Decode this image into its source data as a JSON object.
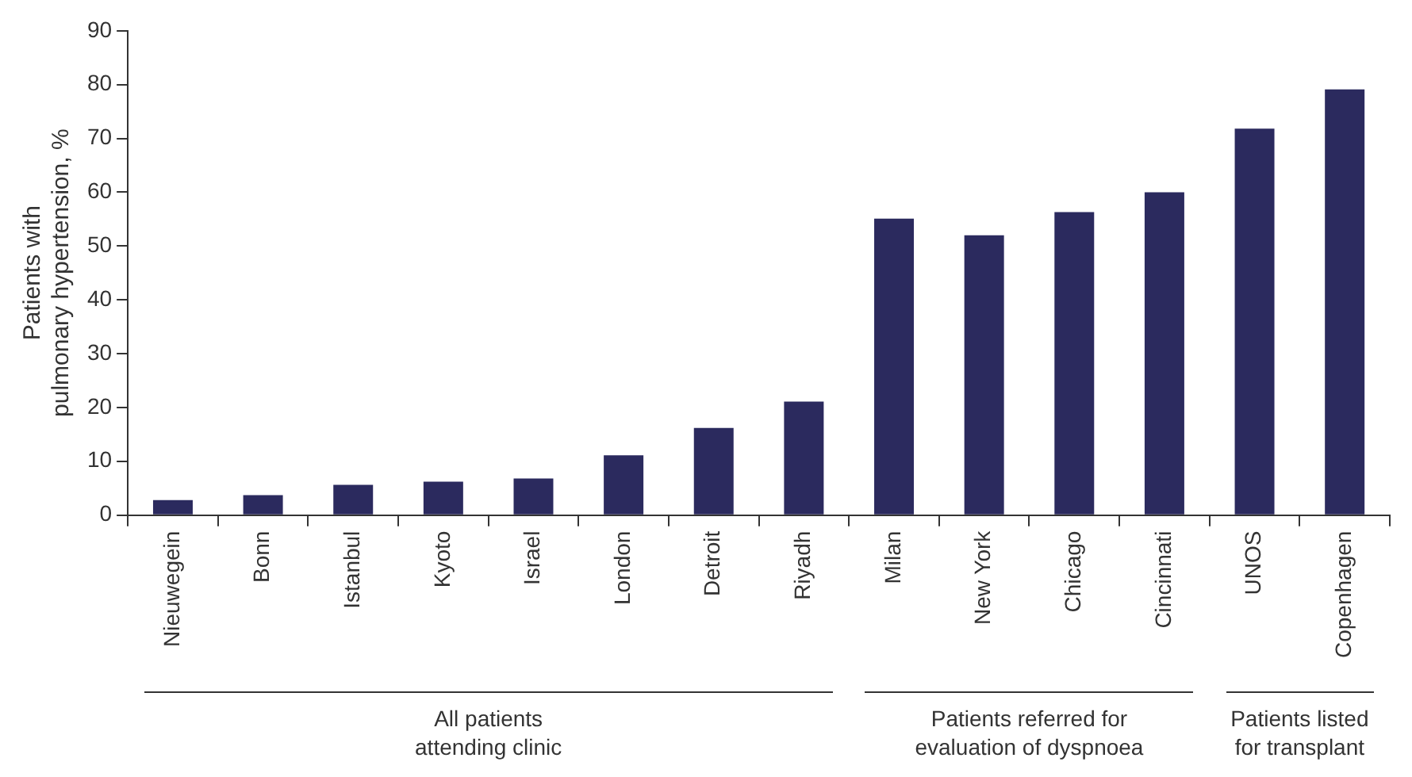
{
  "chart_data": {
    "type": "bar",
    "ylabel": "Patients with\npulmonary hypertension, %",
    "categories": [
      "Nieuwegein",
      "Bonn",
      "Istanbul",
      "Kyoto",
      "Israel",
      "London",
      "Detroit",
      "Riyadh",
      "Milan",
      "New York",
      "Chicago",
      "Cincinnati",
      "UNOS",
      "Copenhagen"
    ],
    "values": [
      2.8,
      3.7,
      5.6,
      6.2,
      6.8,
      11.1,
      16.2,
      21.1,
      55.1,
      52.0,
      56.3,
      60.0,
      71.8,
      79.1
    ],
    "color": "#2b2a5e",
    "ylim": [
      0,
      90
    ],
    "yticks": [
      0,
      10,
      20,
      30,
      40,
      50,
      60,
      70,
      80,
      90
    ],
    "grid": false,
    "legend": false,
    "annotations": [
      "All patients\nattending clinic",
      "Patients referred for\nevaluation of dyspnoea",
      "Patients listed\nfor transplant"
    ]
  }
}
